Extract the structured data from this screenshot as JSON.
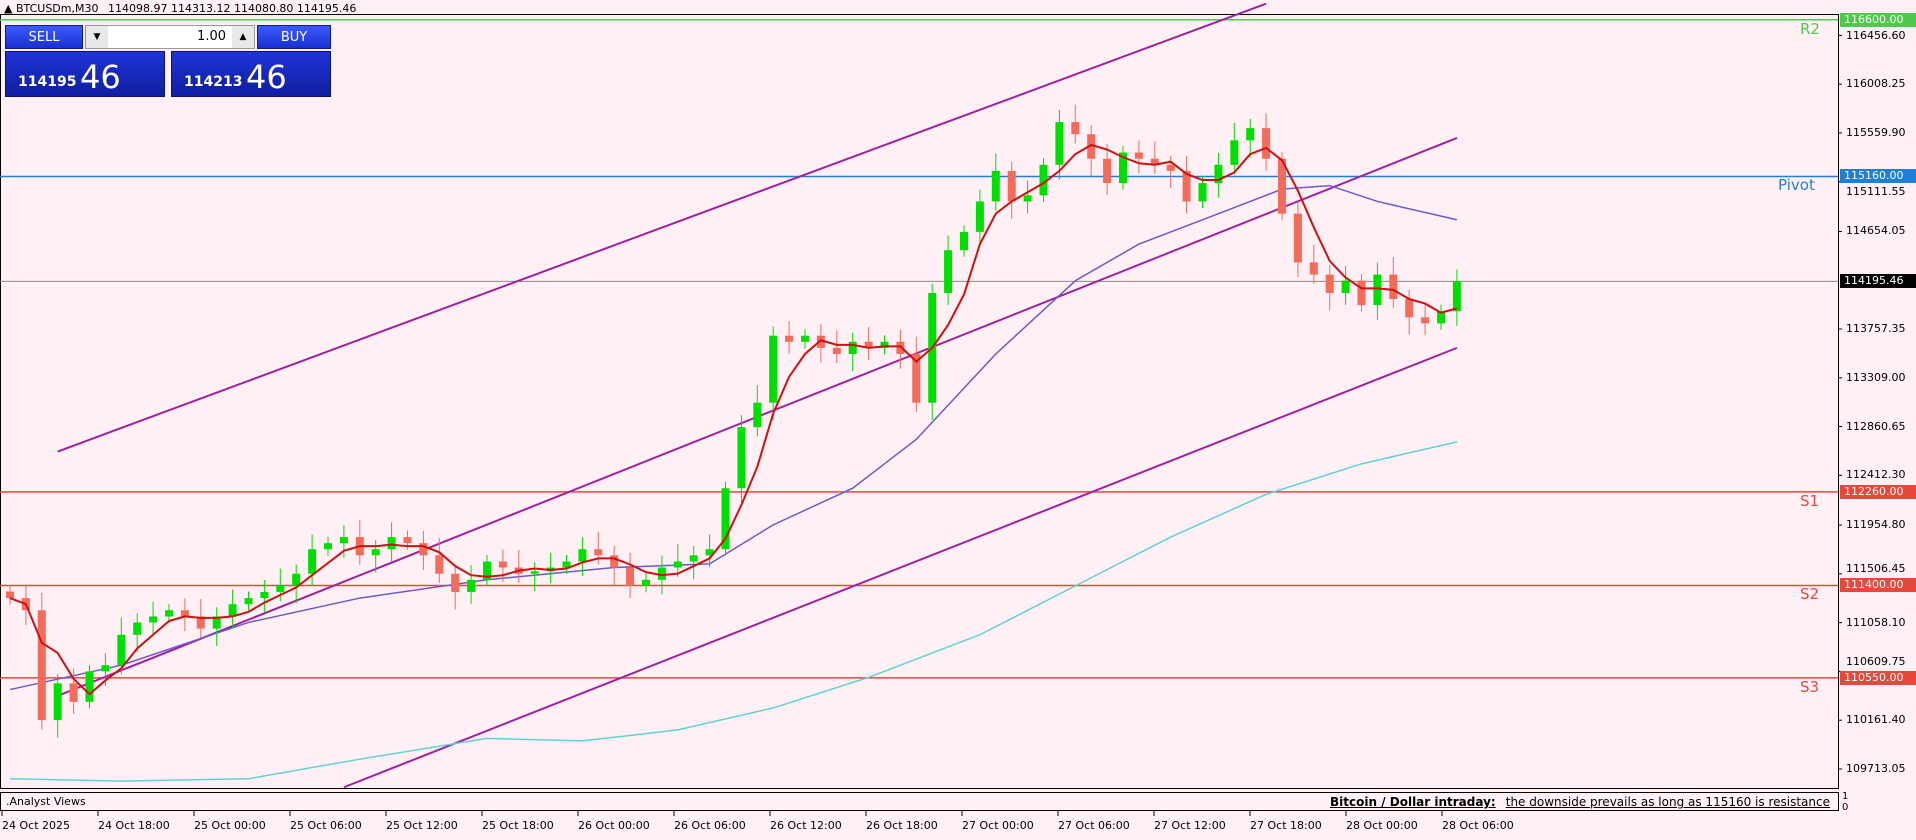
{
  "header": {
    "title": "BTCUSDm,M30",
    "ohlc": "114098.97 114313.12 114080.80 114195.46"
  },
  "trade_panel": {
    "sell_label": "SELL",
    "buy_label": "BUY",
    "volume": "1.00",
    "sell_price_prefix": "114195",
    "sell_price_big": "46",
    "buy_price_prefix": "114213",
    "buy_price_big": "46"
  },
  "price_axis": {
    "ticks": [
      "116456.60",
      "116008.25",
      "115559.90",
      "115111.55",
      "114654.05",
      "113757.35",
      "113309.00",
      "112860.65",
      "112412.30",
      "111954.80",
      "111506.45",
      "111058.10",
      "110609.75",
      "110161.40",
      "109713.05"
    ],
    "range": [
      109650,
      116750
    ]
  },
  "levels": [
    {
      "name": "R2",
      "price": 116600.0,
      "label": "116600.00",
      "color": "#4ec94e"
    },
    {
      "name": "Pivot",
      "price": 115160.0,
      "label": "115160.00",
      "color": "#1e7fd8"
    },
    {
      "name": "S1",
      "price": 112260.0,
      "label": "112260.00",
      "color": "#e8473c"
    },
    {
      "name": "S2",
      "price": 111400.0,
      "label": "111400.00",
      "color": "#e8473c"
    },
    {
      "name": "S3",
      "price": 110550.0,
      "label": "110550.00",
      "color": "#e8473c"
    }
  ],
  "current_price": {
    "value": 114195.46,
    "label": "114195.46"
  },
  "time_axis": [
    "24 Oct 2025",
    "24 Oct 18:00",
    "25 Oct 00:00",
    "25 Oct 06:00",
    "25 Oct 12:00",
    "25 Oct 18:00",
    "26 Oct 00:00",
    "26 Oct 06:00",
    "26 Oct 12:00",
    "26 Oct 18:00",
    "27 Oct 00:00",
    "27 Oct 06:00",
    "27 Oct 12:00",
    "27 Oct 18:00",
    "28 Oct 00:00",
    "28 Oct 06:00"
  ],
  "subwindow": {
    "title": ".Analyst Views",
    "scale_top": "1",
    "scale_bottom": "0",
    "note_title": "Bitcoin / Dollar intraday:",
    "note_text": "the downside prevails as long as 115160 is resistance"
  },
  "colors": {
    "bull": "#00e000",
    "bear": "#f26b5b",
    "fast_ma": "#d01010",
    "mid_ma": "#6a5acd",
    "slow_ma": "#5fd3d0",
    "channel": "#a020a0",
    "background": "#fff0f5"
  },
  "chart_data": {
    "type": "candlestick",
    "symbol": "BTCUSDm",
    "timeframe": "M30",
    "closes": [
      111284,
      111172,
      110162,
      110500,
      110330,
      110610,
      110667,
      110946,
      111060,
      111115,
      111172,
      111115,
      111004,
      111115,
      111228,
      111284,
      111340,
      111396,
      111508,
      111733,
      111789,
      111845,
      111677,
      111733,
      111845,
      111789,
      111677,
      111508,
      111340,
      111452,
      111620,
      111565,
      111508,
      111530,
      111565,
      111620,
      111733,
      111677,
      111565,
      111396,
      111452,
      111565,
      111620,
      111677,
      111733,
      112294,
      112855,
      113080,
      113696,
      113640,
      113696,
      113584,
      113528,
      113640,
      113584,
      113640,
      113528,
      113080,
      114089,
      114482,
      114650,
      114930,
      115211,
      114930,
      114986,
      115267,
      115660,
      115548,
      115323,
      115099,
      115380,
      115323,
      115267,
      115211,
      114930,
      115099,
      115267,
      115492,
      115604,
      115323,
      114818,
      114370,
      114258,
      114089,
      114202,
      113977,
      114258,
      114033,
      113865,
      113809,
      113921,
      114195
    ],
    "mid_ma": [
      [
        0,
        110443
      ],
      [
        7,
        110667
      ],
      [
        15,
        111060
      ],
      [
        22,
        111284
      ],
      [
        30,
        111452
      ],
      [
        38,
        111565
      ],
      [
        44,
        111598
      ],
      [
        48,
        111957
      ],
      [
        53,
        112294
      ],
      [
        57,
        112743
      ],
      [
        62,
        113528
      ],
      [
        67,
        114201
      ],
      [
        71,
        114538
      ],
      [
        76,
        114818
      ],
      [
        80,
        115043
      ],
      [
        83,
        115076
      ],
      [
        86,
        114930
      ],
      [
        91,
        114762
      ]
    ],
    "slow_ma": [
      [
        0,
        109623
      ],
      [
        7,
        109601
      ],
      [
        15,
        109623
      ],
      [
        22,
        109803
      ],
      [
        30,
        109994
      ],
      [
        36,
        109971
      ],
      [
        42,
        110072
      ],
      [
        48,
        110274
      ],
      [
        54,
        110555
      ],
      [
        61,
        110947
      ],
      [
        67,
        111396
      ],
      [
        73,
        111845
      ],
      [
        79,
        112238
      ],
      [
        85,
        112518
      ],
      [
        91,
        112720
      ]
    ],
    "channel_lines": [
      [
        [
          3,
          112631
        ],
        [
          79,
          116748
        ]
      ],
      [
        [
          3,
          110386
        ],
        [
          91,
          115514
        ]
      ],
      [
        [
          21,
          109545
        ],
        [
          91,
          113584
        ]
      ]
    ]
  }
}
